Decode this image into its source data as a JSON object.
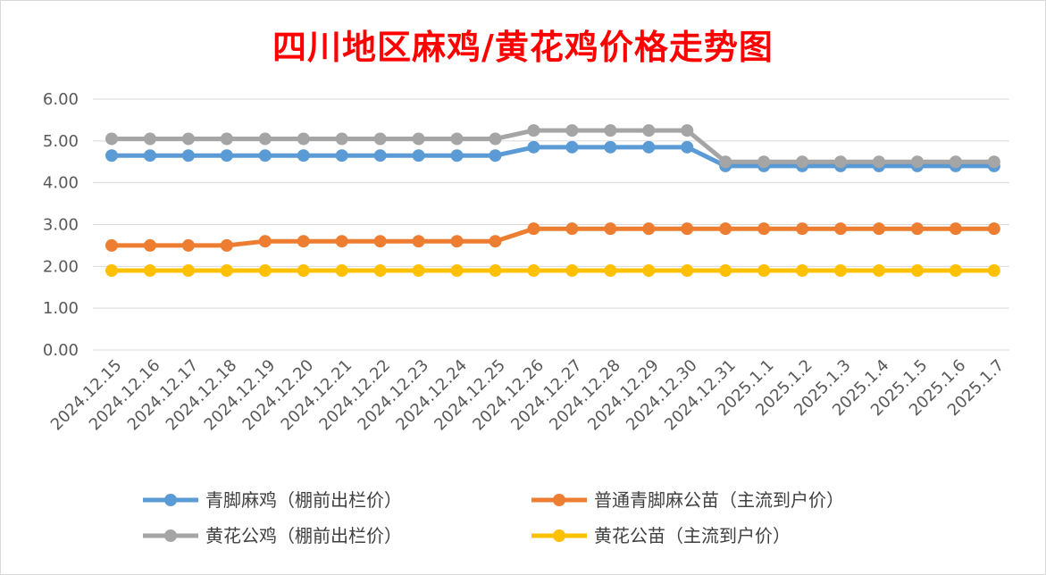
{
  "chart_data": {
    "type": "line",
    "title": "四川地区麻鸡/黄花鸡价格走势图",
    "xlabel": "",
    "ylabel": "",
    "ylim": [
      0,
      6
    ],
    "yticks": [
      "0.00",
      "1.00",
      "2.00",
      "3.00",
      "4.00",
      "5.00",
      "6.00"
    ],
    "grid": true,
    "legend_position": "bottom",
    "categories": [
      "2024.12.15",
      "2024.12.16",
      "2024.12.17",
      "2024.12.18",
      "2024.12.19",
      "2024.12.20",
      "2024.12.21",
      "2024.12.22",
      "2024.12.23",
      "2024.12.24",
      "2024.12.25",
      "2024.12.26",
      "2024.12.27",
      "2024.12.28",
      "2024.12.29",
      "2024.12.30",
      "2024.12.31",
      "2025.1.1",
      "2025.1.2",
      "2025.1.3",
      "2025.1.4",
      "2025.1.5",
      "2025.1.6",
      "2025.1.7"
    ],
    "series": [
      {
        "name": "青脚麻鸡（棚前出栏价）",
        "color": "#5b9bd5",
        "values": [
          4.65,
          4.65,
          4.65,
          4.65,
          4.65,
          4.65,
          4.65,
          4.65,
          4.65,
          4.65,
          4.65,
          4.85,
          4.85,
          4.85,
          4.85,
          4.85,
          4.4,
          4.4,
          4.4,
          4.4,
          4.4,
          4.4,
          4.4,
          4.4
        ]
      },
      {
        "name": "普通青脚麻公苗（主流到户价）",
        "color": "#ed7d31",
        "values": [
          2.5,
          2.5,
          2.5,
          2.5,
          2.6,
          2.6,
          2.6,
          2.6,
          2.6,
          2.6,
          2.6,
          2.9,
          2.9,
          2.9,
          2.9,
          2.9,
          2.9,
          2.9,
          2.9,
          2.9,
          2.9,
          2.9,
          2.9,
          2.9
        ]
      },
      {
        "name": "黄花公鸡（棚前出栏价）",
        "color": "#a5a5a5",
        "values": [
          5.05,
          5.05,
          5.05,
          5.05,
          5.05,
          5.05,
          5.05,
          5.05,
          5.05,
          5.05,
          5.05,
          5.25,
          5.25,
          5.25,
          5.25,
          5.25,
          4.5,
          4.5,
          4.5,
          4.5,
          4.5,
          4.5,
          4.5,
          4.5
        ]
      },
      {
        "name": "黄花公苗（主流到户价）",
        "color": "#ffc000",
        "values": [
          1.9,
          1.9,
          1.9,
          1.9,
          1.9,
          1.9,
          1.9,
          1.9,
          1.9,
          1.9,
          1.9,
          1.9,
          1.9,
          1.9,
          1.9,
          1.9,
          1.9,
          1.9,
          1.9,
          1.9,
          1.9,
          1.9,
          1.9,
          1.9
        ]
      }
    ]
  }
}
